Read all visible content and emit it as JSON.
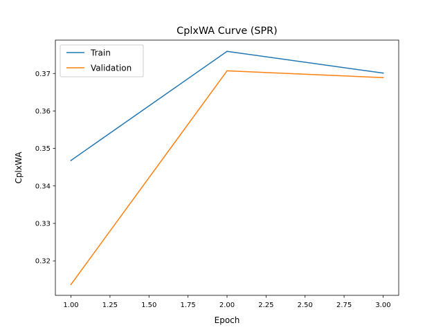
{
  "chart_data": {
    "type": "line",
    "title": "CplxWA Curve (SPR)",
    "xlabel": "Epoch",
    "ylabel": "CplxWA",
    "x": [
      1.0,
      2.0,
      3.0
    ],
    "xlim": [
      0.9,
      3.1
    ],
    "ylim": [
      0.3108,
      0.3789
    ],
    "xticks": [
      1.0,
      1.25,
      1.5,
      1.75,
      2.0,
      2.25,
      2.5,
      2.75,
      3.0
    ],
    "xtick_labels": [
      "1.00",
      "1.25",
      "1.50",
      "1.75",
      "2.00",
      "2.25",
      "2.50",
      "2.75",
      "3.00"
    ],
    "yticks": [
      0.32,
      0.33,
      0.34,
      0.35,
      0.36,
      0.37
    ],
    "ytick_labels": [
      "0.32",
      "0.33",
      "0.34",
      "0.35",
      "0.36",
      "0.37"
    ],
    "grid": false,
    "legend_position": "top-left",
    "series": [
      {
        "name": "Train",
        "values": [
          0.3468,
          0.3759,
          0.3701
        ],
        "color": "#1f77b4"
      },
      {
        "name": "Validation",
        "values": [
          0.3137,
          0.3707,
          0.3689
        ],
        "color": "#ff7f0e"
      }
    ]
  }
}
